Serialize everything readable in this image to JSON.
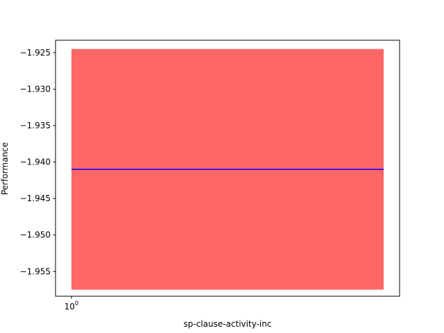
{
  "chart_data": {
    "type": "line",
    "xscale": "log",
    "xlabel": "sp-clause-activity-inc",
    "ylabel": "Performance",
    "x_ticks": [
      {
        "value": 1,
        "base": "10",
        "exp": "0"
      }
    ],
    "y_ticks": [
      -1.925,
      -1.93,
      -1.935,
      -1.94,
      -1.945,
      -1.95,
      -1.955
    ],
    "y_tick_labels": [
      "−1.925",
      "−1.930",
      "−1.935",
      "−1.940",
      "−1.945",
      "−1.950",
      "−1.955"
    ],
    "ylim": [
      -1.9584,
      -1.9233
    ],
    "grid": false,
    "series": [
      {
        "x": [
          1,
          1
        ],
        "y": [
          -1.941,
          -1.941
        ],
        "color": "#0000ff"
      }
    ],
    "band": {
      "y_low": -1.9575,
      "y_high": -1.9245,
      "color": "#ff0000",
      "alpha": 0.6
    }
  }
}
